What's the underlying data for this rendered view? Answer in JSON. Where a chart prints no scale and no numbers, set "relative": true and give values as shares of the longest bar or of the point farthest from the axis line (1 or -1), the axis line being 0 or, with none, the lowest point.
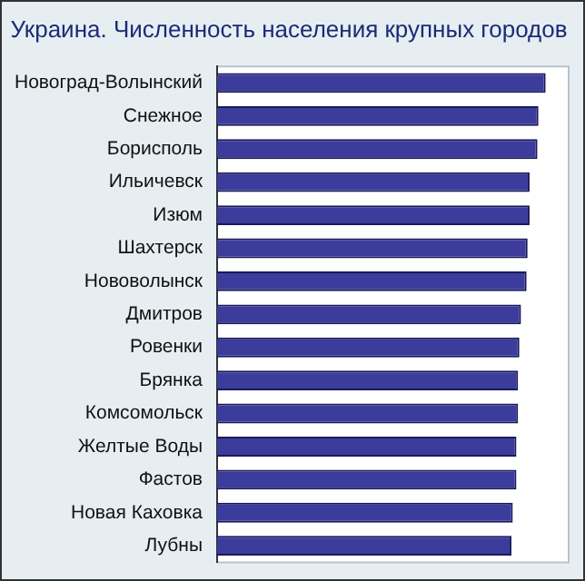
{
  "chart_data": {
    "type": "bar",
    "orientation": "horizontal",
    "relative": true,
    "title": "Украина. Численность населения крупных городов",
    "categories": [
      "Новоград-Волынский",
      "Снежное",
      "Борисполь",
      "Ильичевск",
      "Изюм",
      "Шахтерск",
      "Нововолынск",
      "Дмитров",
      "Ровенки",
      "Брянка",
      "Комсомольск",
      "Желтые Воды",
      "Фастов",
      "Новая Каховка",
      "Лубны"
    ],
    "values": [
      1,
      0.978,
      0.975,
      0.951,
      0.951,
      0.945,
      0.942,
      0.925,
      0.92,
      0.916,
      0.916,
      0.911,
      0.911,
      0.9,
      0.896
    ],
    "color": "#3c3c9c",
    "legend": false
  }
}
